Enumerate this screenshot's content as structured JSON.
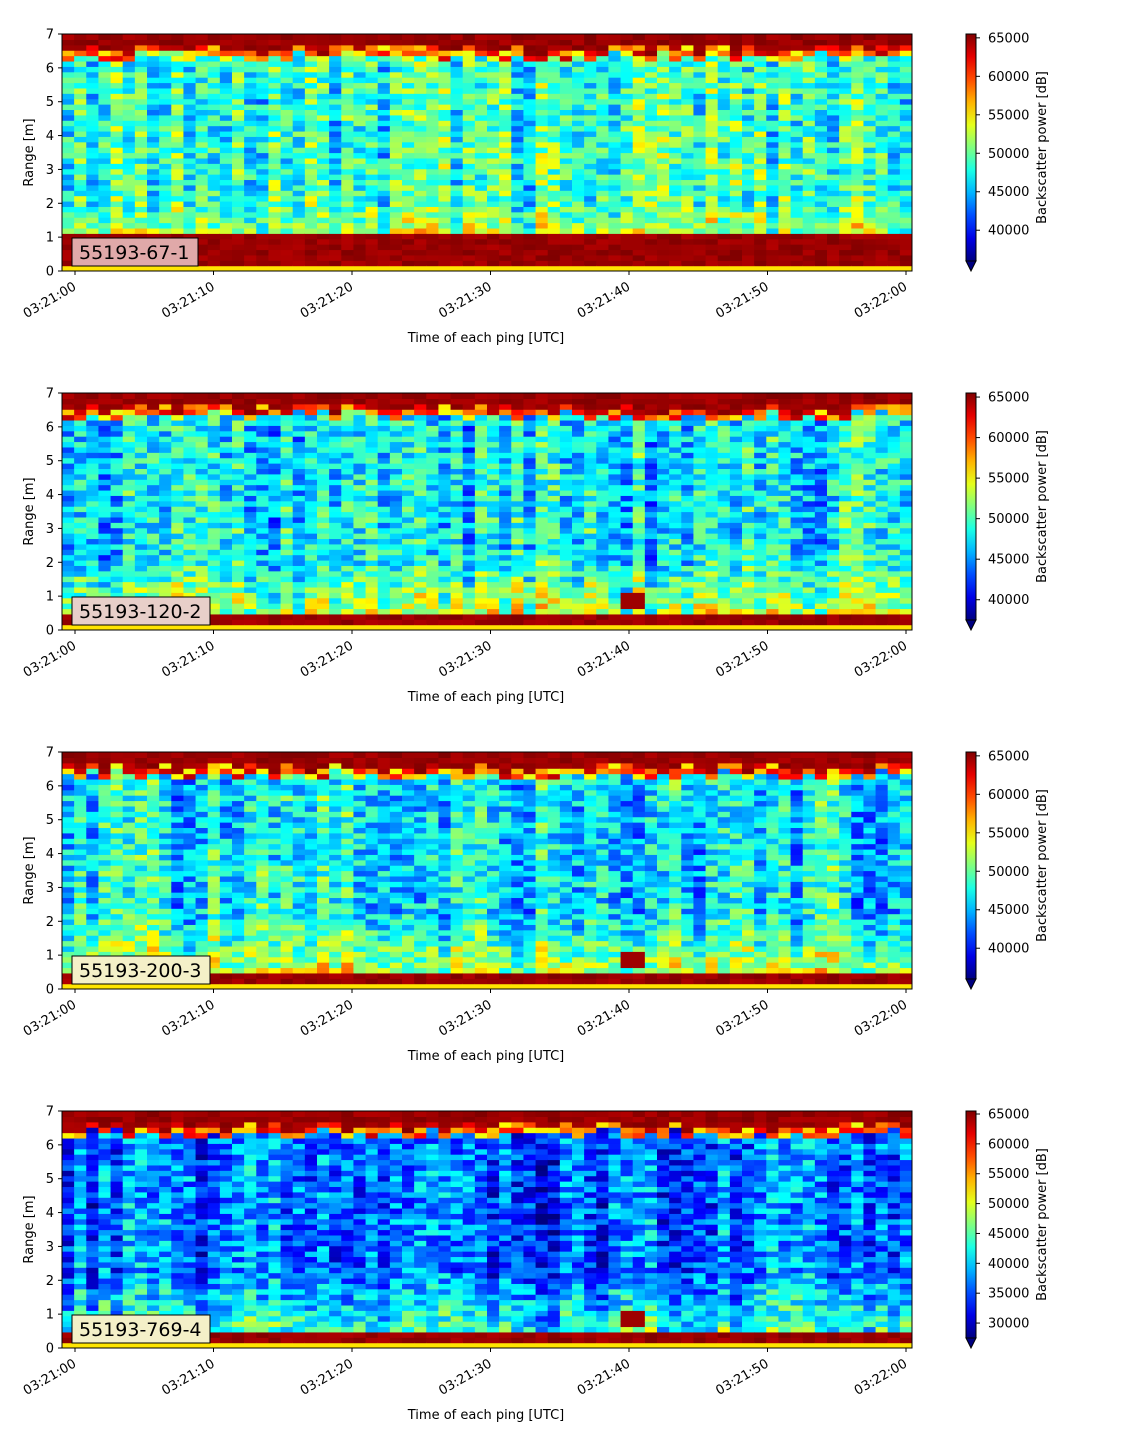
{
  "chart_data": [
    {
      "type": "heatmap",
      "label": "55193-67-1",
      "ylabel": "Range [m]",
      "xlabel": "Time of each ping [UTC]",
      "ylim": [
        0,
        7
      ],
      "y_ticks": [
        "0",
        "1",
        "2",
        "3",
        "4",
        "5",
        "6",
        "7"
      ],
      "x_ticks": [
        "03:21:00",
        "03:21:10",
        "03:21:20",
        "03:21:30",
        "03:21:40",
        "03:21:50",
        "03:22:00"
      ],
      "colorbar": {
        "label": "Backscatter power [dB]",
        "range": [
          36000,
          65500
        ],
        "ticks": [
          "40000",
          "45000",
          "50000",
          "55000",
          "60000",
          "65000"
        ],
        "extend": "min",
        "colormap": "jet"
      },
      "seed": 11,
      "label_box_color": "#e0a9a9"
    },
    {
      "type": "heatmap",
      "label": "55193-120-2",
      "ylabel": "Range [m]",
      "xlabel": "Time of each ping [UTC]",
      "ylim": [
        0,
        7
      ],
      "y_ticks": [
        "0",
        "1",
        "2",
        "3",
        "4",
        "5",
        "6",
        "7"
      ],
      "x_ticks": [
        "03:21:00",
        "03:21:10",
        "03:21:20",
        "03:21:30",
        "03:21:40",
        "03:21:50",
        "03:22:00"
      ],
      "colorbar": {
        "label": "Backscatter power [dB]",
        "range": [
          37500,
          65500
        ],
        "ticks": [
          "40000",
          "45000",
          "50000",
          "55000",
          "60000",
          "65000"
        ],
        "extend": "min",
        "colormap": "jet"
      },
      "seed": 23,
      "label_box_color": "#e8cfc9"
    },
    {
      "type": "heatmap",
      "label": "55193-200-3",
      "ylabel": "Range [m]",
      "xlabel": "Time of each ping [UTC]",
      "ylim": [
        0,
        7
      ],
      "y_ticks": [
        "0",
        "1",
        "2",
        "3",
        "4",
        "5",
        "6",
        "7"
      ],
      "x_ticks": [
        "03:21:00",
        "03:21:10",
        "03:21:20",
        "03:21:30",
        "03:21:40",
        "03:21:50",
        "03:22:00"
      ],
      "colorbar": {
        "label": "Backscatter power [dB]",
        "range": [
          36000,
          65500
        ],
        "ticks": [
          "40000",
          "45000",
          "50000",
          "55000",
          "60000",
          "65000"
        ],
        "extend": "min",
        "colormap": "jet"
      },
      "seed": 37,
      "label_box_color": "#f4f0c8"
    },
    {
      "type": "heatmap",
      "label": "55193-769-4",
      "ylabel": "Range [m]",
      "xlabel": "Time of each ping [UTC]",
      "ylim": [
        0,
        7
      ],
      "y_ticks": [
        "0",
        "1",
        "2",
        "3",
        "4",
        "5",
        "6",
        "7"
      ],
      "x_ticks": [
        "03:21:00",
        "03:21:10",
        "03:21:20",
        "03:21:30",
        "03:21:40",
        "03:21:50",
        "03:22:00"
      ],
      "colorbar": {
        "label": "Backscatter power [dB]",
        "range": [
          27500,
          65500
        ],
        "ticks": [
          "30000",
          "35000",
          "40000",
          "45000",
          "50000",
          "55000",
          "60000",
          "65000"
        ],
        "extend": "min",
        "colormap": "jet"
      },
      "seed": 53,
      "label_box_color": "#f4f0c8"
    }
  ]
}
